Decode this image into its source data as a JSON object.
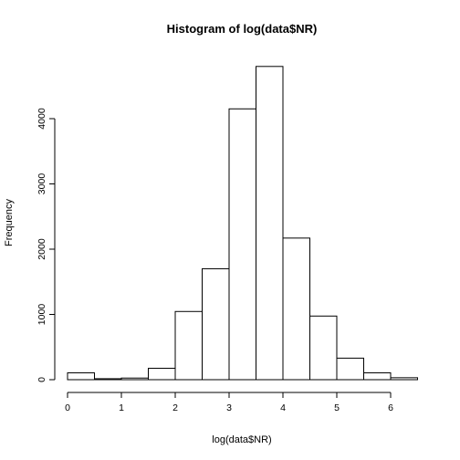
{
  "chart_data": {
    "type": "bar",
    "title": "Histogram of log(data$NR)",
    "xlabel": "log(data$NR)",
    "ylabel": "Frequency",
    "bin_width": 0.5,
    "bins": [
      {
        "start": 0.0,
        "end": 0.5,
        "count": 105
      },
      {
        "start": 0.5,
        "end": 1.0,
        "count": 15
      },
      {
        "start": 1.0,
        "end": 1.5,
        "count": 25
      },
      {
        "start": 1.5,
        "end": 2.0,
        "count": 175
      },
      {
        "start": 2.0,
        "end": 2.5,
        "count": 1045
      },
      {
        "start": 2.5,
        "end": 3.0,
        "count": 1700
      },
      {
        "start": 3.0,
        "end": 3.5,
        "count": 4150
      },
      {
        "start": 3.5,
        "end": 4.0,
        "count": 4800
      },
      {
        "start": 4.0,
        "end": 4.5,
        "count": 2170
      },
      {
        "start": 4.5,
        "end": 5.0,
        "count": 975
      },
      {
        "start": 5.0,
        "end": 5.5,
        "count": 330
      },
      {
        "start": 5.5,
        "end": 6.0,
        "count": 105
      },
      {
        "start": 6.0,
        "end": 6.5,
        "count": 30
      }
    ],
    "xlim": [
      0,
      6.5
    ],
    "ylim": [
      0,
      4800
    ],
    "x_ticks": [
      0,
      1,
      2,
      3,
      4,
      5,
      6
    ],
    "x_tick_labels": [
      "0",
      "1",
      "2",
      "3",
      "4",
      "5",
      "6"
    ],
    "y_ticks": [
      0,
      1000,
      2000,
      3000,
      4000
    ],
    "y_tick_labels": [
      "0",
      "1000",
      "2000",
      "3000",
      "4000"
    ],
    "grid": false,
    "bar_fill": "#ffffff",
    "bar_stroke": "#000000"
  }
}
